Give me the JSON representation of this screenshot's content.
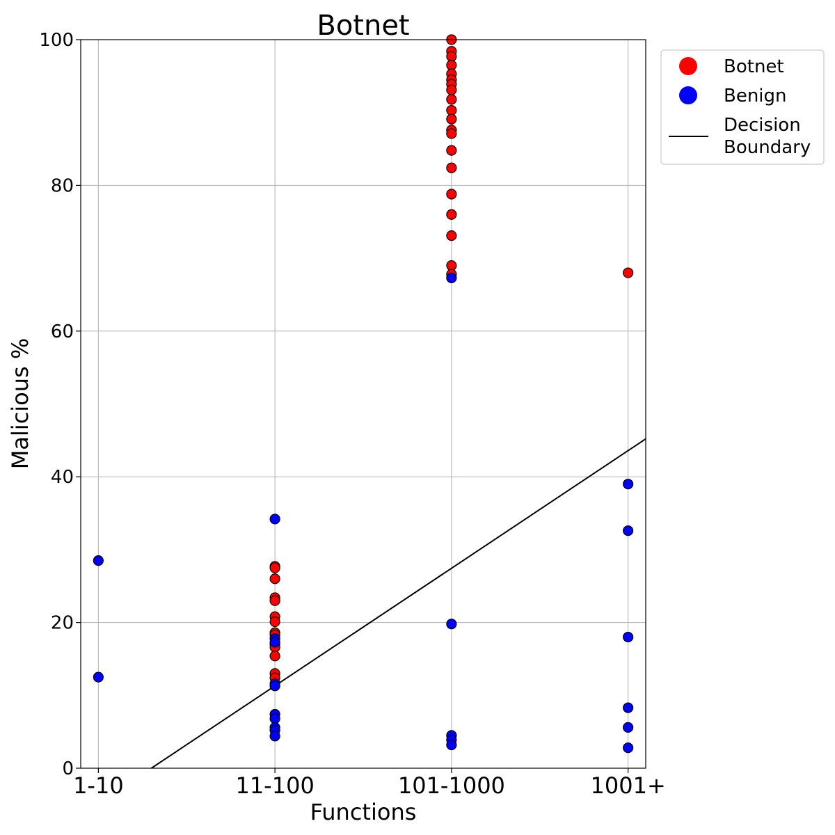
{
  "chart_data": {
    "type": "scatter",
    "title": "Botnet",
    "xlabel": "Functions",
    "ylabel": "Malicious %",
    "categories": [
      "1-10",
      "11-100",
      "101-1000",
      "1001+"
    ],
    "xlim": [
      -0.1,
      3.1
    ],
    "ylim": [
      0,
      100
    ],
    "yticks": [
      "0",
      "20",
      "40",
      "60",
      "80",
      "100"
    ],
    "grid": true,
    "legend_position": "outside-top-right",
    "colors": {
      "botnet": "#ff0000",
      "benign": "#0000ff",
      "boundary": "#000000"
    },
    "series": [
      {
        "name": "Botnet",
        "color": "#ff0000",
        "points": [
          [
            1,
            27.7
          ],
          [
            1,
            27.5
          ],
          [
            1,
            26.0
          ],
          [
            1,
            23.4
          ],
          [
            1,
            23.0
          ],
          [
            1,
            20.8
          ],
          [
            1,
            20.1
          ],
          [
            1,
            18.6
          ],
          [
            1,
            18.3
          ],
          [
            1,
            17.0
          ],
          [
            1,
            16.6
          ],
          [
            1,
            15.4
          ],
          [
            1,
            13.0
          ],
          [
            1,
            12.4
          ],
          [
            2,
            100.0
          ],
          [
            2,
            98.4
          ],
          [
            2,
            97.7
          ],
          [
            2,
            96.5
          ],
          [
            2,
            95.3
          ],
          [
            2,
            94.5
          ],
          [
            2,
            93.9
          ],
          [
            2,
            93.1
          ],
          [
            2,
            91.8
          ],
          [
            2,
            90.3
          ],
          [
            2,
            89.1
          ],
          [
            2,
            87.6
          ],
          [
            2,
            87.1
          ],
          [
            2,
            84.8
          ],
          [
            2,
            82.4
          ],
          [
            2,
            78.8
          ],
          [
            2,
            76.0
          ],
          [
            2,
            73.1
          ],
          [
            2,
            69.0
          ],
          [
            2,
            67.8
          ],
          [
            3,
            68.0
          ]
        ]
      },
      {
        "name": "Benign",
        "color": "#0000ff",
        "points": [
          [
            0,
            28.5
          ],
          [
            0,
            12.5
          ],
          [
            1,
            34.2
          ],
          [
            1,
            17.8
          ],
          [
            1,
            17.3
          ],
          [
            1,
            11.6
          ],
          [
            1,
            11.3
          ],
          [
            1,
            7.4
          ],
          [
            1,
            6.8
          ],
          [
            1,
            5.6
          ],
          [
            1,
            5.2
          ],
          [
            1,
            4.4
          ],
          [
            2,
            67.3
          ],
          [
            2,
            19.8
          ],
          [
            2,
            4.5
          ],
          [
            2,
            3.9
          ],
          [
            2,
            3.2
          ],
          [
            3,
            39.0
          ],
          [
            3,
            32.6
          ],
          [
            3,
            18.0
          ],
          [
            3,
            8.3
          ],
          [
            3,
            5.6
          ],
          [
            3,
            2.8
          ]
        ]
      }
    ],
    "lines": [
      {
        "name": "Decision Boundary",
        "color": "#000000",
        "x": [
          0.3,
          3.1
        ],
        "y": [
          0,
          45.2
        ]
      }
    ],
    "legend_labels": [
      "Botnet",
      "Benign",
      "Decision",
      "Boundary"
    ]
  }
}
